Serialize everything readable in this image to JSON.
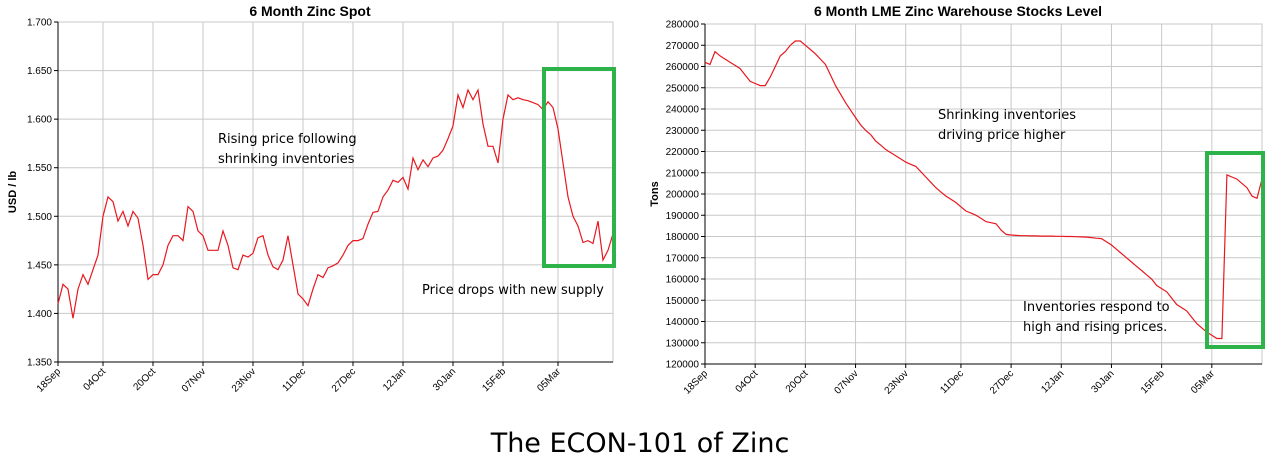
{
  "caption": "The ECON-101 of Zinc",
  "chart_data": [
    {
      "type": "line",
      "title": "6 Month Zinc Spot",
      "y_label": "USD / lb",
      "categories": [
        "18Sep",
        null,
        null,
        null,
        null,
        null,
        null,
        null,
        null,
        "04Oct",
        null,
        null,
        null,
        null,
        null,
        null,
        null,
        null,
        null,
        "20Oct",
        null,
        null,
        null,
        null,
        null,
        null,
        null,
        null,
        null,
        "07Nov",
        null,
        null,
        null,
        null,
        null,
        null,
        null,
        null,
        null,
        "23Nov",
        null,
        null,
        null,
        null,
        null,
        null,
        null,
        null,
        null,
        "11Dec",
        null,
        null,
        null,
        null,
        null,
        null,
        null,
        null,
        null,
        "27Dec",
        null,
        null,
        null,
        null,
        null,
        null,
        null,
        null,
        null,
        "12Jan",
        null,
        null,
        null,
        null,
        null,
        null,
        null,
        null,
        null,
        "30Jan",
        null,
        null,
        null,
        null,
        null,
        null,
        null,
        null,
        null,
        "15Feb",
        null,
        null,
        null,
        null,
        null,
        null,
        null,
        null,
        null,
        null,
        "05Mar",
        null,
        null,
        null,
        null,
        null,
        null,
        null,
        null,
        null,
        null,
        null
      ],
      "series": [
        {
          "color": "#e8181f",
          "values": [
            1.41,
            1.43,
            1.425,
            1.395,
            1.425,
            1.44,
            1.43,
            1.445,
            1.46,
            1.5,
            1.52,
            1.515,
            1.495,
            1.505,
            1.49,
            1.505,
            1.498,
            1.47,
            1.435,
            1.44,
            1.44,
            1.45,
            1.47,
            1.48,
            1.48,
            1.475,
            1.51,
            1.505,
            1.485,
            1.48,
            1.465,
            1.465,
            1.465,
            1.485,
            1.47,
            1.447,
            1.445,
            1.46,
            1.458,
            1.462,
            1.478,
            1.48,
            1.46,
            1.448,
            1.445,
            1.455,
            1.48,
            1.45,
            1.42,
            1.415,
            1.408,
            1.425,
            1.44,
            1.437,
            1.447,
            1.449,
            1.452,
            1.46,
            1.47,
            1.475,
            1.475,
            1.477,
            1.492,
            1.504,
            1.505,
            1.52,
            1.527,
            1.537,
            1.535,
            1.54,
            1.528,
            1.56,
            1.548,
            1.558,
            1.551,
            1.56,
            1.562,
            1.568,
            1.58,
            1.593,
            1.625,
            1.612,
            1.63,
            1.62,
            1.63,
            1.595,
            1.572,
            1.572,
            1.555,
            1.6,
            1.625,
            1.62,
            1.622,
            1.62,
            1.619,
            1.617,
            1.615,
            1.61,
            1.618,
            1.612,
            1.59,
            1.555,
            1.52,
            1.5,
            1.49,
            1.473,
            1.475,
            1.472,
            1.495,
            1.455,
            1.465,
            1.482
          ]
        }
      ],
      "ylim": [
        1.35,
        1.7
      ],
      "yticks": [
        {
          "value": 1.35,
          "label": "1.350"
        },
        {
          "value": 1.4,
          "label": "1.400"
        },
        {
          "value": 1.45,
          "label": "1.450"
        },
        {
          "value": 1.5,
          "label": "1.500"
        },
        {
          "value": 1.55,
          "label": "1.550"
        },
        {
          "value": 1.6,
          "label": "1.600"
        },
        {
          "value": 1.65,
          "label": "1.650"
        },
        {
          "value": 1.7,
          "label": "1.700"
        }
      ],
      "grid": true,
      "annotations": [
        [
          "Rising price following",
          "shrinking inventories"
        ],
        [
          "Price drops with new supply"
        ]
      ]
    },
    {
      "type": "line",
      "title": "6 Month LME Zinc Warehouse Stocks Level",
      "y_label": "Tons",
      "categories": [
        "18Sep",
        null,
        null,
        null,
        null,
        null,
        null,
        null,
        null,
        null,
        "04Oct",
        null,
        null,
        null,
        null,
        null,
        null,
        null,
        null,
        null,
        "20Oct",
        null,
        null,
        null,
        null,
        null,
        null,
        null,
        null,
        null,
        "07Nov",
        null,
        null,
        null,
        null,
        null,
        null,
        null,
        null,
        null,
        "23Nov",
        null,
        null,
        null,
        null,
        null,
        null,
        null,
        null,
        null,
        null,
        "11Dec",
        null,
        null,
        null,
        null,
        null,
        null,
        null,
        null,
        null,
        "27Dec",
        null,
        null,
        null,
        null,
        null,
        null,
        null,
        null,
        null,
        "12Jan",
        null,
        null,
        null,
        null,
        null,
        null,
        null,
        null,
        null,
        "30Jan",
        null,
        null,
        null,
        null,
        null,
        null,
        null,
        null,
        null,
        "15Feb",
        null,
        null,
        null,
        null,
        null,
        null,
        null,
        null,
        null,
        "05Mar",
        null,
        null,
        null,
        null,
        null,
        null,
        null,
        null,
        null,
        null
      ],
      "series": [
        {
          "color": "#e8181f",
          "values": [
            262000,
            261000,
            267000,
            265000,
            263500,
            262000,
            260500,
            259000,
            256000,
            253000,
            252000,
            251000,
            251000,
            255000,
            260000,
            265000,
            267000,
            270000,
            272000,
            272000,
            270000,
            268000,
            266000,
            263500,
            261000,
            256000,
            251000,
            247000,
            243000,
            239500,
            236000,
            232500,
            230000,
            228000,
            225000,
            223000,
            221000,
            219500,
            218000,
            216500,
            215000,
            214000,
            213000,
            210500,
            208000,
            205500,
            203000,
            201000,
            199000,
            197500,
            196000,
            194000,
            192000,
            191000,
            190000,
            188500,
            187000,
            186500,
            186000,
            183000,
            181000,
            180700,
            180500,
            180400,
            180400,
            180300,
            180300,
            180200,
            180200,
            180200,
            180100,
            180100,
            180000,
            180000,
            179900,
            179800,
            179700,
            179500,
            179200,
            179000,
            177500,
            176000,
            174000,
            172000,
            170000,
            168000,
            166000,
            164000,
            162000,
            160000,
            157000,
            155500,
            154000,
            151000,
            148000,
            146500,
            145000,
            142000,
            139000,
            137000,
            135000,
            133500,
            132000,
            132000,
            209000,
            208000,
            207000,
            205000,
            203000,
            199000,
            198000,
            207000
          ]
        }
      ],
      "ylim": [
        120000,
        280000
      ],
      "yticks": [
        120000,
        130000,
        140000,
        150000,
        160000,
        170000,
        180000,
        190000,
        200000,
        210000,
        220000,
        230000,
        240000,
        250000,
        260000,
        270000,
        280000
      ],
      "grid": true,
      "annotations": [
        [
          "Shrinking inventories",
          "driving price higher"
        ],
        [
          "Inventories respond to",
          "high and rising prices."
        ]
      ]
    }
  ]
}
